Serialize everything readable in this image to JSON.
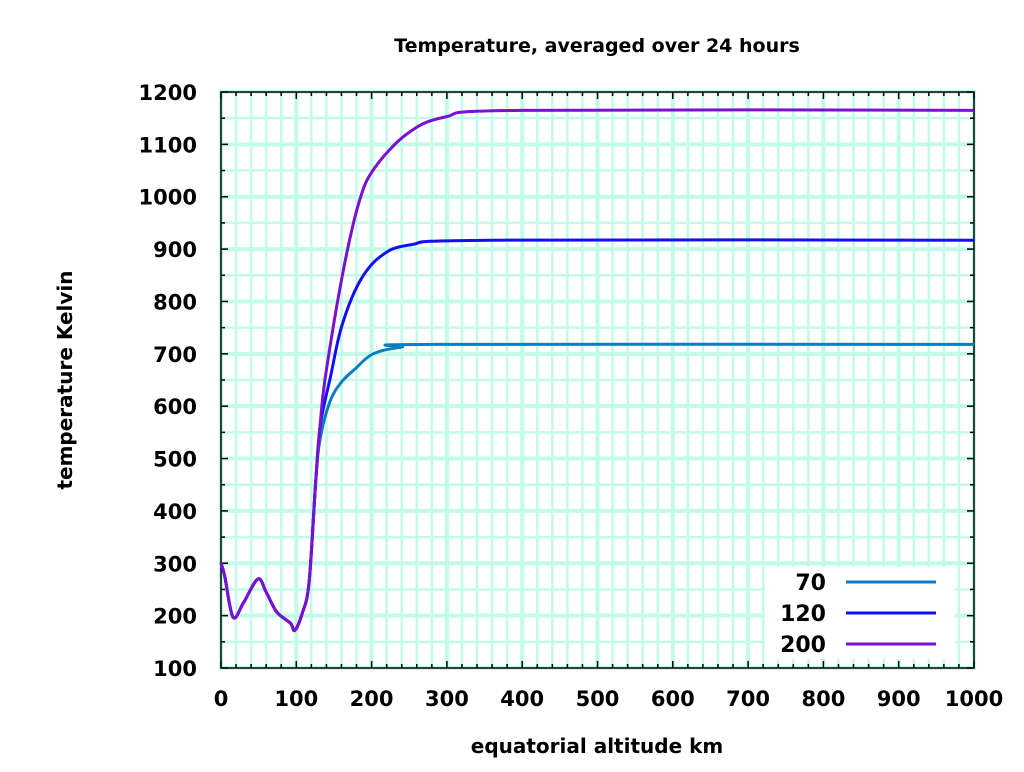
{
  "chart_data": {
    "type": "line",
    "title": "Temperature, averaged over 24 hours",
    "xlabel": "equatorial altitude km",
    "ylabel": "temperature Kelvin",
    "xlim": [
      0,
      1000
    ],
    "ylim": [
      100,
      1200
    ],
    "xticks": [
      0,
      100,
      200,
      300,
      400,
      500,
      600,
      700,
      800,
      900,
      1000
    ],
    "yticks": [
      100,
      200,
      300,
      400,
      500,
      600,
      700,
      800,
      900,
      1000,
      1100,
      1200
    ],
    "grid": true,
    "legend_position": "bottom-right",
    "colors": {
      "grid": "#c2fbe9",
      "axis": "#000000"
    },
    "series": [
      {
        "name": "70",
        "color": "#0a7fc0",
        "x": [
          0,
          5,
          16,
          30,
          49,
          60,
          74,
          92,
          98,
          108,
          117,
          126,
          132,
          145,
          160,
          178,
          202,
          240,
          284,
          1000
        ],
        "y": [
          300,
          275,
          197,
          225,
          270,
          245,
          207,
          186,
          172,
          205,
          264,
          461,
          540,
          610,
          646,
          671,
          700,
          713,
          718,
          718
        ]
      },
      {
        "name": "120",
        "color": "#1010f0",
        "x": [
          0,
          5,
          16,
          30,
          49,
          60,
          74,
          92,
          98,
          108,
          117,
          126,
          132,
          146,
          160,
          183,
          211,
          251,
          360,
          1000
        ],
        "y": [
          300,
          275,
          197,
          225,
          270,
          245,
          207,
          186,
          172,
          205,
          264,
          461,
          565,
          660,
          751,
          835,
          885,
          908,
          917,
          917
        ]
      },
      {
        "name": "200",
        "color": "#7a10d0",
        "x": [
          0,
          5,
          16,
          30,
          49,
          60,
          74,
          92,
          98,
          108,
          117,
          126,
          132,
          139,
          162,
          183,
          203,
          247,
          297,
          400,
          1000
        ],
        "y": [
          300,
          275,
          197,
          225,
          270,
          245,
          207,
          186,
          172,
          205,
          264,
          461,
          570,
          660,
          856,
          988,
          1053,
          1120,
          1152,
          1165,
          1165
        ]
      }
    ]
  }
}
